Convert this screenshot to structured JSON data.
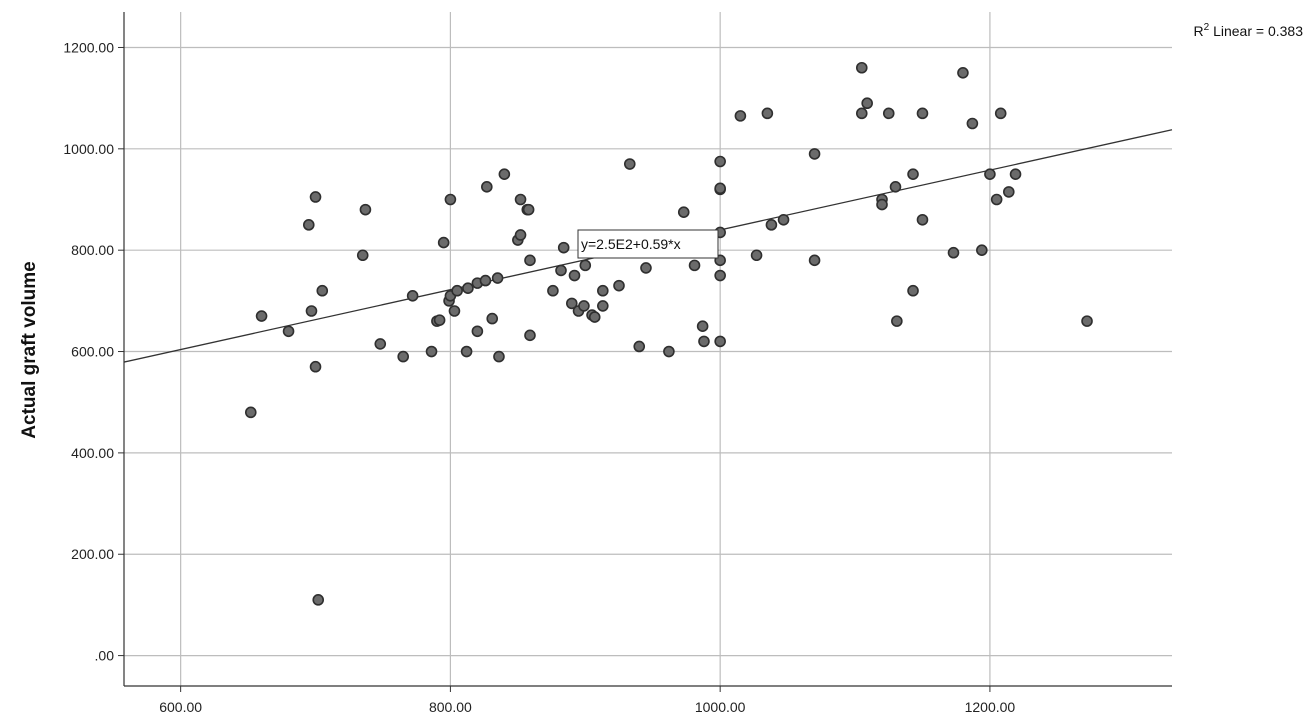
{
  "chart_data": {
    "type": "scatter",
    "title": "",
    "xlabel": "",
    "ylabel": "Actual graft volume",
    "xlim": [
      558,
      1335
    ],
    "ylim": [
      -60,
      1270
    ],
    "x_ticks": [
      "600.00",
      "800.00",
      "1000.00",
      "1200.00"
    ],
    "y_ticks": [
      ".00",
      "200.00",
      "400.00",
      "600.00",
      "800.00",
      "1000.00",
      "1200.00"
    ],
    "grid": true,
    "fit_line": {
      "intercept": 250,
      "slope": 0.59,
      "label": "y=2.5E2+0.59*x"
    },
    "r2_annotation": {
      "prefix": "R",
      "superscript": "2",
      "text": " Linear = 0.383"
    },
    "colors": {
      "marker_fill": "#6b6b6b",
      "marker_stroke": "#2f2f2f",
      "fit_line": "#333333",
      "grid": "#bdbdbd",
      "axis": "#333333"
    },
    "points": [
      {
        "x": 652,
        "y": 480
      },
      {
        "x": 660,
        "y": 670
      },
      {
        "x": 680,
        "y": 640
      },
      {
        "x": 695,
        "y": 850
      },
      {
        "x": 697,
        "y": 680
      },
      {
        "x": 700,
        "y": 905
      },
      {
        "x": 700,
        "y": 570
      },
      {
        "x": 705,
        "y": 720
      },
      {
        "x": 702,
        "y": 110
      },
      {
        "x": 737,
        "y": 880
      },
      {
        "x": 735,
        "y": 790
      },
      {
        "x": 748,
        "y": 615
      },
      {
        "x": 765,
        "y": 590
      },
      {
        "x": 772,
        "y": 710
      },
      {
        "x": 786,
        "y": 600
      },
      {
        "x": 790,
        "y": 660
      },
      {
        "x": 792,
        "y": 662
      },
      {
        "x": 795,
        "y": 815
      },
      {
        "x": 799,
        "y": 700
      },
      {
        "x": 800,
        "y": 900
      },
      {
        "x": 800,
        "y": 710
      },
      {
        "x": 803,
        "y": 680
      },
      {
        "x": 805,
        "y": 720
      },
      {
        "x": 812,
        "y": 600
      },
      {
        "x": 813,
        "y": 725
      },
      {
        "x": 820,
        "y": 735
      },
      {
        "x": 820,
        "y": 640
      },
      {
        "x": 826,
        "y": 740
      },
      {
        "x": 827,
        "y": 925
      },
      {
        "x": 831,
        "y": 665
      },
      {
        "x": 835,
        "y": 745
      },
      {
        "x": 836,
        "y": 590
      },
      {
        "x": 840,
        "y": 950
      },
      {
        "x": 850,
        "y": 820
      },
      {
        "x": 852,
        "y": 830
      },
      {
        "x": 852,
        "y": 900
      },
      {
        "x": 857,
        "y": 880
      },
      {
        "x": 858,
        "y": 880
      },
      {
        "x": 859,
        "y": 780
      },
      {
        "x": 859,
        "y": 632
      },
      {
        "x": 876,
        "y": 720
      },
      {
        "x": 882,
        "y": 760
      },
      {
        "x": 884,
        "y": 805
      },
      {
        "x": 890,
        "y": 695
      },
      {
        "x": 892,
        "y": 750
      },
      {
        "x": 895,
        "y": 680
      },
      {
        "x": 899,
        "y": 690
      },
      {
        "x": 900,
        "y": 770
      },
      {
        "x": 905,
        "y": 672
      },
      {
        "x": 907,
        "y": 668
      },
      {
        "x": 913,
        "y": 720
      },
      {
        "x": 913,
        "y": 690
      },
      {
        "x": 925,
        "y": 730
      },
      {
        "x": 933,
        "y": 970
      },
      {
        "x": 940,
        "y": 610
      },
      {
        "x": 945,
        "y": 765
      },
      {
        "x": 962,
        "y": 600
      },
      {
        "x": 973,
        "y": 875
      },
      {
        "x": 981,
        "y": 770
      },
      {
        "x": 987,
        "y": 650
      },
      {
        "x": 988,
        "y": 620
      },
      {
        "x": 1000,
        "y": 975
      },
      {
        "x": 1000,
        "y": 920
      },
      {
        "x": 1000,
        "y": 922
      },
      {
        "x": 1000,
        "y": 835
      },
      {
        "x": 1000,
        "y": 780
      },
      {
        "x": 1000,
        "y": 750
      },
      {
        "x": 1000,
        "y": 620
      },
      {
        "x": 1015,
        "y": 1065
      },
      {
        "x": 1027,
        "y": 790
      },
      {
        "x": 1035,
        "y": 1070
      },
      {
        "x": 1038,
        "y": 850
      },
      {
        "x": 1047,
        "y": 860
      },
      {
        "x": 1070,
        "y": 990
      },
      {
        "x": 1070,
        "y": 780
      },
      {
        "x": 1105,
        "y": 1160
      },
      {
        "x": 1105,
        "y": 1070
      },
      {
        "x": 1109,
        "y": 1090
      },
      {
        "x": 1120,
        "y": 900
      },
      {
        "x": 1120,
        "y": 890
      },
      {
        "x": 1125,
        "y": 1070
      },
      {
        "x": 1130,
        "y": 925
      },
      {
        "x": 1131,
        "y": 660
      },
      {
        "x": 1143,
        "y": 950
      },
      {
        "x": 1143,
        "y": 720
      },
      {
        "x": 1150,
        "y": 1070
      },
      {
        "x": 1150,
        "y": 860
      },
      {
        "x": 1173,
        "y": 795
      },
      {
        "x": 1180,
        "y": 1150
      },
      {
        "x": 1187,
        "y": 1050
      },
      {
        "x": 1194,
        "y": 800
      },
      {
        "x": 1200,
        "y": 950
      },
      {
        "x": 1205,
        "y": 900
      },
      {
        "x": 1208,
        "y": 1070
      },
      {
        "x": 1214,
        "y": 915
      },
      {
        "x": 1219,
        "y": 950
      },
      {
        "x": 1272,
        "y": 660
      }
    ]
  }
}
